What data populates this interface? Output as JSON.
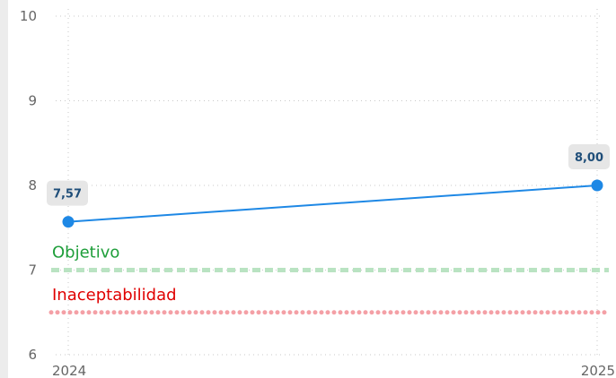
{
  "chart_data": {
    "type": "line",
    "x": [
      "2024",
      "2025"
    ],
    "series": [
      {
        "values": [
          7.57,
          8.0
        ],
        "labels": [
          "7,57",
          "8,00"
        ],
        "color": "#1e88e5"
      }
    ],
    "reference_lines": [
      {
        "label": "Objetivo",
        "value": 7.0,
        "color": "#1e9e3a",
        "line_color": "#b9e3c2",
        "style": "dashed"
      },
      {
        "label": "Inaceptabilidad",
        "value": 6.5,
        "color": "#e00000",
        "line_color": "#f4a0a6",
        "style": "dotted"
      }
    ],
    "ylim": [
      6,
      10
    ],
    "yticks": [
      "6",
      "7",
      "8",
      "9",
      "10"
    ],
    "grid": true
  }
}
